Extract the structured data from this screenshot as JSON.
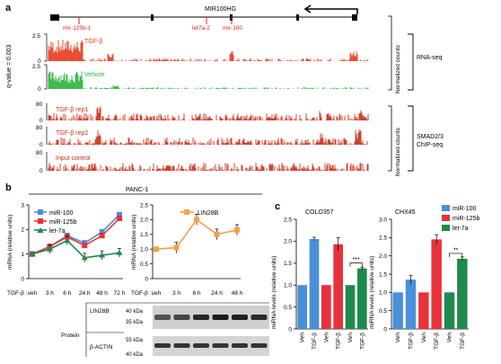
{
  "panels": {
    "a": "a",
    "b": "b",
    "c": "c"
  },
  "panel_a": {
    "gene": "MIR100HG",
    "mirs": [
      "mir-125b-1",
      "let7a-2",
      "mir-100"
    ],
    "qvalue_label": "q-value = 0.003",
    "rnaseq_tracks": [
      {
        "label": "TGF-β",
        "ymax": "2.5",
        "ymin": "0",
        "color": "#e8381f"
      },
      {
        "label": "Vehicle",
        "ymax": "2.5",
        "ymin": "0",
        "color": "#30b040"
      }
    ],
    "chip_tracks": [
      {
        "label": "TGF-β rep1",
        "ymax": "80",
        "ymin": "0"
      },
      {
        "label": "TGF-β rep2",
        "ymax": "80",
        "ymin": "0"
      },
      {
        "label": "Input control",
        "ymax": "80",
        "ymin": "0"
      }
    ],
    "side_labels": {
      "norm1": "Normalized counts",
      "rnaseq": "RNA-seq",
      "norm2": "Normalized counts",
      "chip1": "SMAD2/3",
      "chip2": "ChIP-seq"
    }
  },
  "panel_b": {
    "cell_line": "PANC-1",
    "ylabel": "mRNA (relative units)",
    "tgf_label": "TGF-β :",
    "protein_label": "Protein",
    "blot_labels": [
      "LIN28B",
      "β-ACTIN"
    ],
    "mw_labels": [
      "40 kDa",
      "35 kDa",
      "55 kDa",
      "40 kDa"
    ]
  },
  "panel_c": {
    "ylabel": "miRNA levels (relative units)",
    "legend": [
      "miR-100",
      "miR-125b",
      "let-7a"
    ],
    "legend_colors": [
      "#4a90d9",
      "#e8323a",
      "#1f8a4c"
    ]
  },
  "chart_data": [
    {
      "type": "line",
      "x": [
        "veh",
        "3 h",
        "6 h",
        "24 h",
        "48 h",
        "72 h"
      ],
      "ylim": [
        0,
        3
      ],
      "yticks": [
        "0",
        "1",
        "2",
        "3"
      ],
      "series": [
        {
          "name": "miR-100",
          "color": "#4a90d9",
          "values": [
            1.0,
            1.3,
            1.75,
            1.45,
            1.9,
            2.6
          ]
        },
        {
          "name": "miR-125b",
          "color": "#e8323a",
          "values": [
            1.0,
            1.3,
            1.7,
            1.35,
            1.75,
            2.45
          ]
        },
        {
          "name": "let-7a",
          "color": "#1f8a4c",
          "values": [
            1.0,
            1.2,
            1.55,
            0.85,
            0.95,
            1.05
          ]
        }
      ]
    },
    {
      "type": "line",
      "x": [
        "veh",
        "3 h",
        "6 h",
        "24 h",
        "48 h"
      ],
      "ylim": [
        0,
        2.5
      ],
      "yticks": [
        "0",
        "0.5",
        "1.0",
        "1.5",
        "2.0",
        "2.5"
      ],
      "series": [
        {
          "name": "LIN28B",
          "color": "#f5a04a",
          "values": [
            1.0,
            1.05,
            2.0,
            1.5,
            1.65
          ]
        }
      ]
    },
    {
      "type": "bar",
      "title": "COLO357",
      "ylim": [
        0,
        2.5
      ],
      "yticks": [
        "0",
        "0.5",
        "1.0",
        "1.5",
        "2.0",
        "2.5"
      ],
      "categories": [
        "Veh",
        "TGF-β",
        "Veh",
        "TGF-β",
        "Veh",
        "TGF-β"
      ],
      "values": [
        1.0,
        2.05,
        1.0,
        1.93,
        1.0,
        1.38
      ],
      "colors": [
        "#4a90d9",
        "#4a90d9",
        "#e8323a",
        "#e8323a",
        "#1f8a4c",
        "#1f8a4c"
      ],
      "errors": [
        0,
        0.04,
        0,
        0.15,
        0,
        0.03
      ],
      "annotation": "***"
    },
    {
      "type": "bar",
      "title": "CHX45",
      "ylim": [
        0,
        3
      ],
      "yticks": [
        "0",
        "0.5",
        "1.0",
        "1.5",
        "2.0",
        "2.5",
        "3.0"
      ],
      "categories": [
        "Veh",
        "TGF-β",
        "Veh",
        "TGF-β",
        "Veh",
        "TGF-β"
      ],
      "values": [
        1.0,
        1.35,
        1.0,
        2.45,
        1.0,
        1.92
      ],
      "colors": [
        "#4a90d9",
        "#4a90d9",
        "#e8323a",
        "#e8323a",
        "#1f8a4c",
        "#1f8a4c"
      ],
      "errors": [
        0,
        0.12,
        0,
        0.13,
        0,
        0.05
      ],
      "annotation": "**"
    }
  ]
}
